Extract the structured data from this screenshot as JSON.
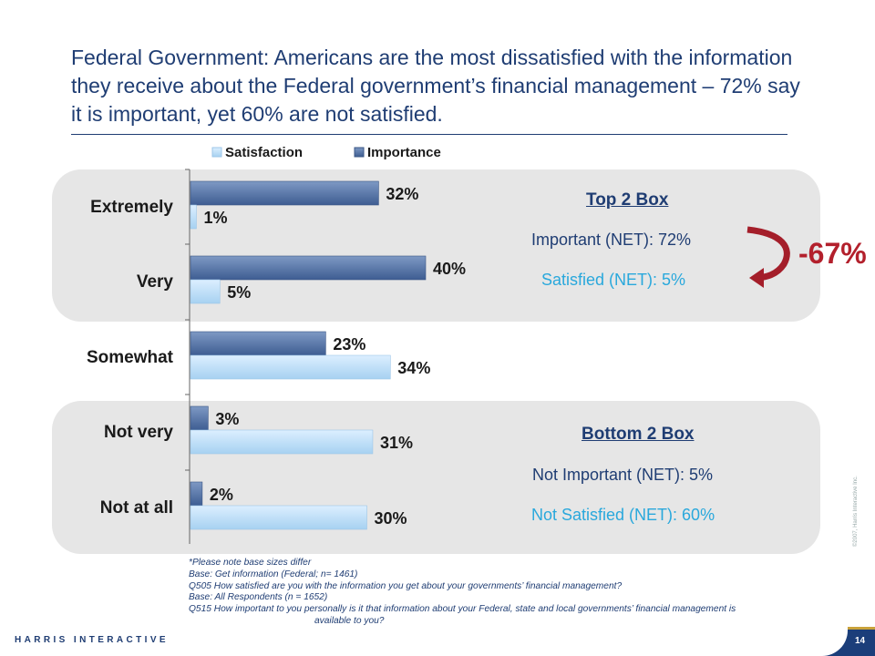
{
  "title": "Federal Government: Americans are the most dissatisfied with the information they receive about the Federal government’s financial management – 72% say it is important, yet 60% are not satisfied.",
  "colors": {
    "importance": "#4f6ea0",
    "satisfaction": "#b9dcf5",
    "delta": "#b3202c"
  },
  "chart_data": {
    "type": "bar",
    "orientation": "horizontal",
    "categories": [
      "Extremely",
      "Very",
      "Somewhat",
      "Not very",
      "Not at all"
    ],
    "series": [
      {
        "name": "Importance",
        "values": [
          32,
          40,
          23,
          3,
          2
        ]
      },
      {
        "name": "Satisfaction",
        "values": [
          1,
          5,
          34,
          31,
          30
        ]
      }
    ],
    "value_suffix": "%",
    "legend_position": "top",
    "grid": false
  },
  "top_box": {
    "heading": "Top 2 Box",
    "important": "Important (NET): 72%",
    "satisfied": "Satisfied (NET): 5%"
  },
  "bottom_box": {
    "heading": "Bottom 2 Box",
    "important": "Not Important (NET): 5%",
    "satisfied": "Not Satisfied (NET): 60%"
  },
  "delta_label": "-67%",
  "notes": [
    "*Please note base sizes differ",
    "Base: Get information (Federal;  n= 1461)",
    "Q505 How satisfied are you with the information you get about your governments’ financial management?",
    "Base: All Respondents (n = 1652)",
    "Q515 How important to  you personally is it that information about your Federal, state and local governments’ financial management is",
    "available to you?"
  ],
  "footer": {
    "brand": "HARRIS INTERACTIVE",
    "page": "14",
    "copyright": "©2007, Harris Interactive Inc."
  }
}
